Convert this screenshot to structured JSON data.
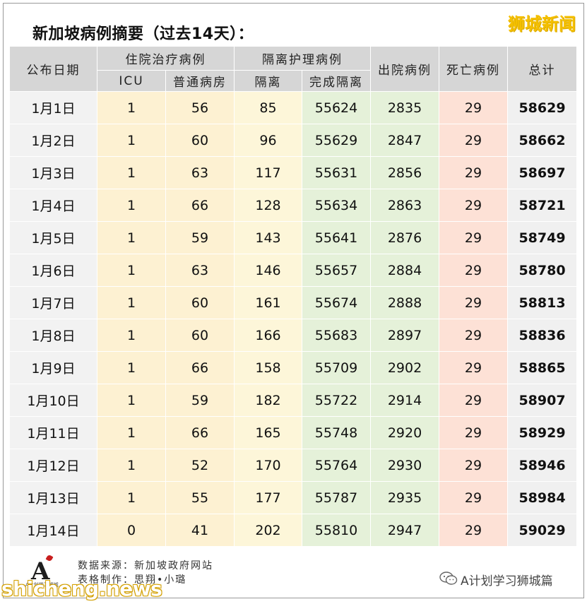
{
  "title": "新加坡病例摘要（过去14天）：",
  "brand": "狮城新闻",
  "colors": {
    "header_bg": "#d6d6d6",
    "date_bg": "#f2f2f2",
    "hospital_bg": "#fdf1d2",
    "isolation_bg": "#fdf6d9",
    "completed_bg": "#e5f1d9",
    "death_bg": "#fde1d6",
    "total_bg": "#f0f0f0",
    "grid": "#ffffff"
  },
  "chart_data": {
    "type": "table",
    "title": "新加坡病例摘要（过去14天）：",
    "header_groups": [
      {
        "label": "住院治疗病例",
        "span": [
          "ICU",
          "普通病房"
        ]
      },
      {
        "label": "隔离护理病例",
        "span": [
          "隔离",
          "完成隔离"
        ]
      }
    ],
    "columns": [
      "公布日期",
      "ICU",
      "普通病房",
      "隔离",
      "完成隔离",
      "出院病例",
      "死亡病例",
      "总计"
    ],
    "rows": [
      [
        "1月1日",
        "1",
        "56",
        "85",
        "55624",
        "2835",
        "29",
        "58629"
      ],
      [
        "1月2日",
        "1",
        "60",
        "96",
        "55629",
        "2847",
        "29",
        "58662"
      ],
      [
        "1月3日",
        "1",
        "63",
        "117",
        "55631",
        "2856",
        "29",
        "58697"
      ],
      [
        "1月4日",
        "1",
        "66",
        "128",
        "55634",
        "2863",
        "29",
        "58721"
      ],
      [
        "1月5日",
        "1",
        "59",
        "143",
        "55641",
        "2876",
        "29",
        "58749"
      ],
      [
        "1月6日",
        "1",
        "63",
        "146",
        "55657",
        "2884",
        "29",
        "58780"
      ],
      [
        "1月7日",
        "1",
        "60",
        "161",
        "55674",
        "2888",
        "29",
        "58813"
      ],
      [
        "1月8日",
        "1",
        "60",
        "166",
        "55683",
        "2897",
        "29",
        "58836"
      ],
      [
        "1月9日",
        "1",
        "66",
        "158",
        "55709",
        "2902",
        "29",
        "58865"
      ],
      [
        "1月10日",
        "1",
        "59",
        "182",
        "55722",
        "2914",
        "29",
        "58907"
      ],
      [
        "1月11日",
        "1",
        "66",
        "165",
        "55748",
        "2920",
        "29",
        "58929"
      ],
      [
        "1月12日",
        "1",
        "52",
        "170",
        "55764",
        "2930",
        "29",
        "58946"
      ],
      [
        "1月13日",
        "1",
        "55",
        "177",
        "55787",
        "2935",
        "29",
        "58984"
      ],
      [
        "1月14日",
        "0",
        "41",
        "202",
        "55810",
        "2947",
        "29",
        "59029"
      ]
    ]
  },
  "footer": {
    "source": "数据来源：新加坡政府网站",
    "maker": "表格制作：思翔•小璐",
    "logo_letter": "A",
    "logo_sub": "A计划学习狮城"
  },
  "watermarks": {
    "left": "shicheng.news",
    "right": "A计划学习狮城篇",
    "icon": "wechat-icon"
  }
}
